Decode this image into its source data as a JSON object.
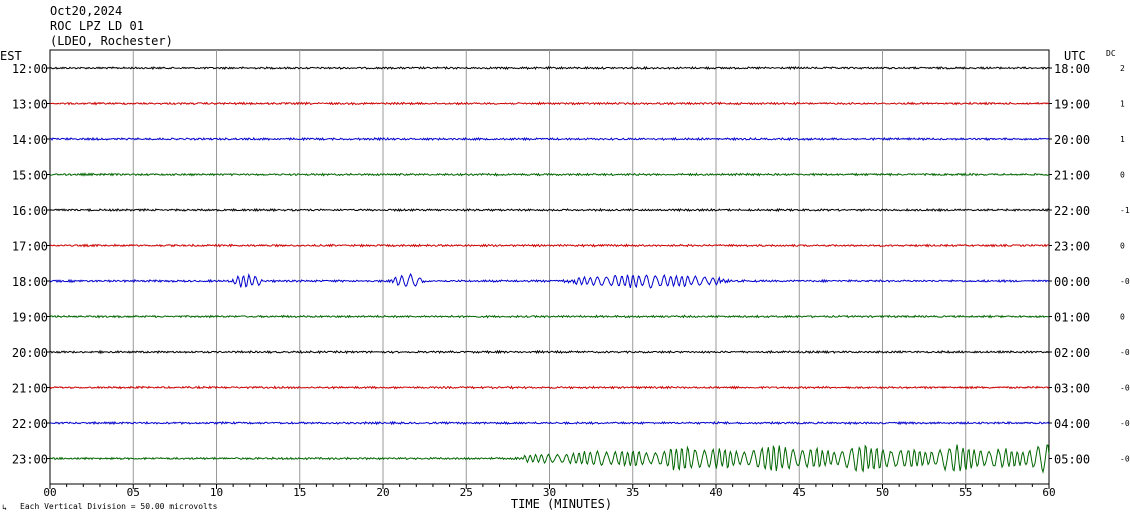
{
  "header": {
    "date": "Oct20,2024",
    "station": "ROC LPZ LD 01",
    "network": "(LDEO, Rochester)"
  },
  "chart_data": {
    "type": "line",
    "subtype": "seismogram-helicorder",
    "xlabel": "TIME (MINUTES)",
    "xlim": [
      0,
      60
    ],
    "x_ticks": [
      "00",
      "05",
      "10",
      "15",
      "20",
      "25",
      "30",
      "35",
      "40",
      "45",
      "50",
      "55",
      "60"
    ],
    "left_axis_label": "EST",
    "right_axis_label": "UTC",
    "dc_label": "DC",
    "footnote": "Each Vertical Division =   50.00 microvolts",
    "grid": true,
    "line_colors": [
      "#000000",
      "#cc0000",
      "#0000cc",
      "#006600"
    ],
    "rows": [
      {
        "est": "12:00",
        "utc": "18:00",
        "dc": "2",
        "color": "#000000"
      },
      {
        "est": "13:00",
        "utc": "19:00",
        "dc": "1",
        "color": "#cc0000"
      },
      {
        "est": "14:00",
        "utc": "20:00",
        "dc": "1",
        "color": "#0000cc"
      },
      {
        "est": "15:00",
        "utc": "21:00",
        "dc": "0",
        "color": "#006600"
      },
      {
        "est": "16:00",
        "utc": "22:00",
        "dc": "-1",
        "color": "#000000"
      },
      {
        "est": "17:00",
        "utc": "23:00",
        "dc": "0",
        "color": "#cc0000"
      },
      {
        "est": "18:00",
        "utc": "00:00",
        "dc": "-0",
        "color": "#0000cc"
      },
      {
        "est": "19:00",
        "utc": "01:00",
        "dc": "0",
        "color": "#006600"
      },
      {
        "est": "20:00",
        "utc": "02:00",
        "dc": "-0",
        "color": "#000000"
      },
      {
        "est": "21:00",
        "utc": "03:00",
        "dc": "-0",
        "color": "#cc0000"
      },
      {
        "est": "22:00",
        "utc": "04:00",
        "dc": "-0",
        "color": "#0000cc"
      },
      {
        "est": "23:00",
        "utc": "05:00",
        "dc": "-0",
        "color": "#006600"
      }
    ],
    "events": [
      {
        "row": "18:00",
        "start_min": 10.8,
        "end_min": 12.8,
        "amplitude": "moderate"
      },
      {
        "row": "18:00",
        "start_min": 20.5,
        "end_min": 22.5,
        "amplitude": "moderate"
      },
      {
        "row": "18:00",
        "start_min": 30.5,
        "end_min": 41.0,
        "amplitude": "moderate"
      },
      {
        "row": "23:00",
        "start_min": 28.5,
        "end_min": 60.0,
        "amplitude": "large"
      }
    ]
  }
}
